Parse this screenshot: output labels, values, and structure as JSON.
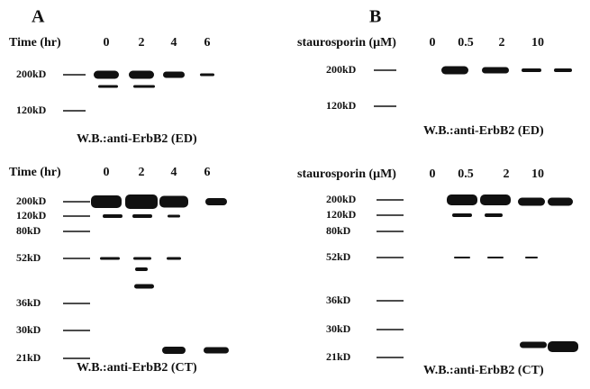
{
  "panels": [
    {
      "letter": "A",
      "blots": [
        {
          "header": "Time (hr)",
          "lanes": [
            "0",
            "2",
            "4",
            "6"
          ],
          "markers": [
            "200kD",
            "120kD"
          ],
          "caption": "W.B.:anti-ErbB2 (ED)"
        },
        {
          "header": "Time (hr)",
          "lanes": [
            "0",
            "2",
            "4",
            "6"
          ],
          "markers": [
            "200kD",
            "120kD",
            "80kD",
            "52kD",
            "36kD",
            "30kD",
            "21kD"
          ],
          "caption": "W.B.:anti-ErbB2 (CT)"
        }
      ]
    },
    {
      "letter": "B",
      "blots": [
        {
          "header": "staurosporin (μM)",
          "lanes": [
            "0",
            "0.5",
            "2",
            "10"
          ],
          "markers": [
            "200kD",
            "120kD"
          ],
          "caption": "W.B.:anti-ErbB2 (ED)"
        },
        {
          "header": "staurosporin (μM)",
          "lanes": [
            "0",
            "0.5",
            "2",
            "10"
          ],
          "markers": [
            "200kD",
            "120kD",
            "80kD",
            "52kD",
            "36kD",
            "30kD",
            "21kD"
          ],
          "caption": "W.B.:anti-ErbB2 (CT)"
        }
      ]
    }
  ]
}
